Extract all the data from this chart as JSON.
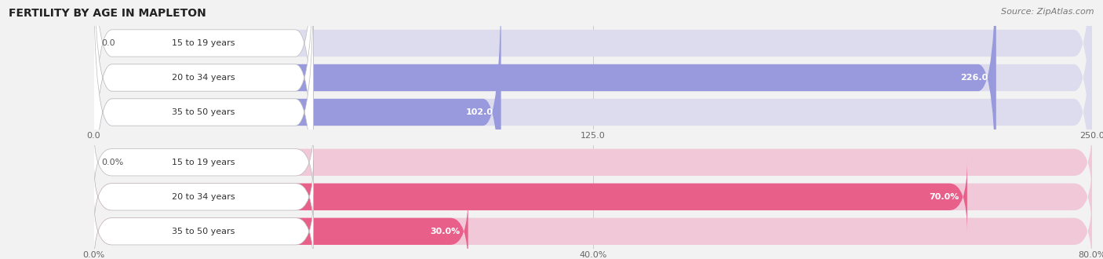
{
  "title": "FERTILITY BY AGE IN MAPLETON",
  "source": "Source: ZipAtlas.com",
  "top_chart": {
    "categories": [
      "15 to 19 years",
      "20 to 34 years",
      "35 to 50 years"
    ],
    "values": [
      0.0,
      226.0,
      102.0
    ],
    "bar_color": "#9999dd",
    "bar_bg_color": "#dcdcee",
    "xlim": [
      0,
      250.0
    ],
    "xticks": [
      0.0,
      125.0,
      250.0
    ],
    "xtick_labels": [
      "0.0",
      "125.0",
      "250.0"
    ],
    "label_inside_threshold": 50
  },
  "bottom_chart": {
    "categories": [
      "15 to 19 years",
      "20 to 34 years",
      "35 to 50 years"
    ],
    "values": [
      0.0,
      70.0,
      30.0
    ],
    "bar_color": "#e8608a",
    "bar_bg_color": "#f0c8d8",
    "xlim": [
      0,
      80.0
    ],
    "xticks": [
      0.0,
      40.0,
      80.0
    ],
    "xtick_labels": [
      "0.0%",
      "40.0%",
      "80.0%"
    ],
    "label_inside_threshold": 5
  },
  "label_color": "#333333",
  "bar_height": 0.78,
  "label_fontsize": 8.0,
  "value_fontsize": 8.0,
  "title_fontsize": 10,
  "source_fontsize": 8,
  "background_color": "#f2f2f2"
}
